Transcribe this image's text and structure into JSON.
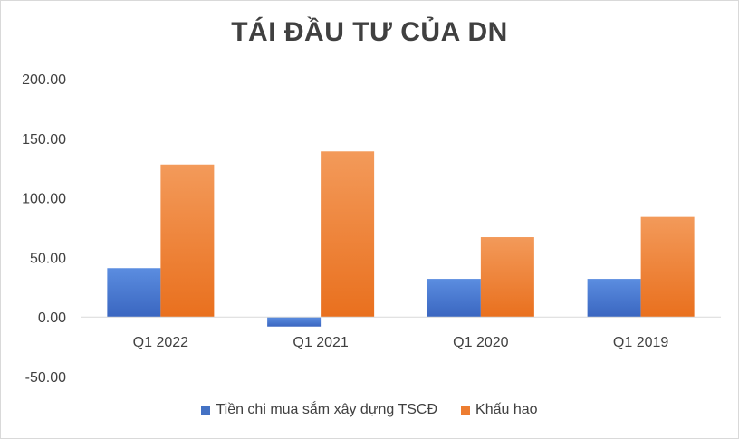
{
  "chart_data": {
    "type": "bar",
    "title": "TÁI ĐẦU TƯ CỦA DN",
    "categories": [
      "Q1 2022",
      "Q1 2021",
      "Q1 2020",
      "Q1 2019"
    ],
    "series": [
      {
        "name": "Tiền chi mua sắm xây dựng TSCĐ",
        "values": [
          41,
          -8,
          32,
          32
        ],
        "color": "#4472c4"
      },
      {
        "name": "Khấu hao",
        "values": [
          128,
          139,
          67,
          84
        ],
        "color": "#ed7d31"
      }
    ],
    "ylim": [
      -50,
      200
    ],
    "yticks": [
      "200.00",
      "150.00",
      "100.00",
      "50.00",
      "0.00",
      "-50.00"
    ],
    "ytick_values": [
      200,
      150,
      100,
      50,
      0,
      -50
    ],
    "grid": false,
    "legend_position": "bottom"
  }
}
